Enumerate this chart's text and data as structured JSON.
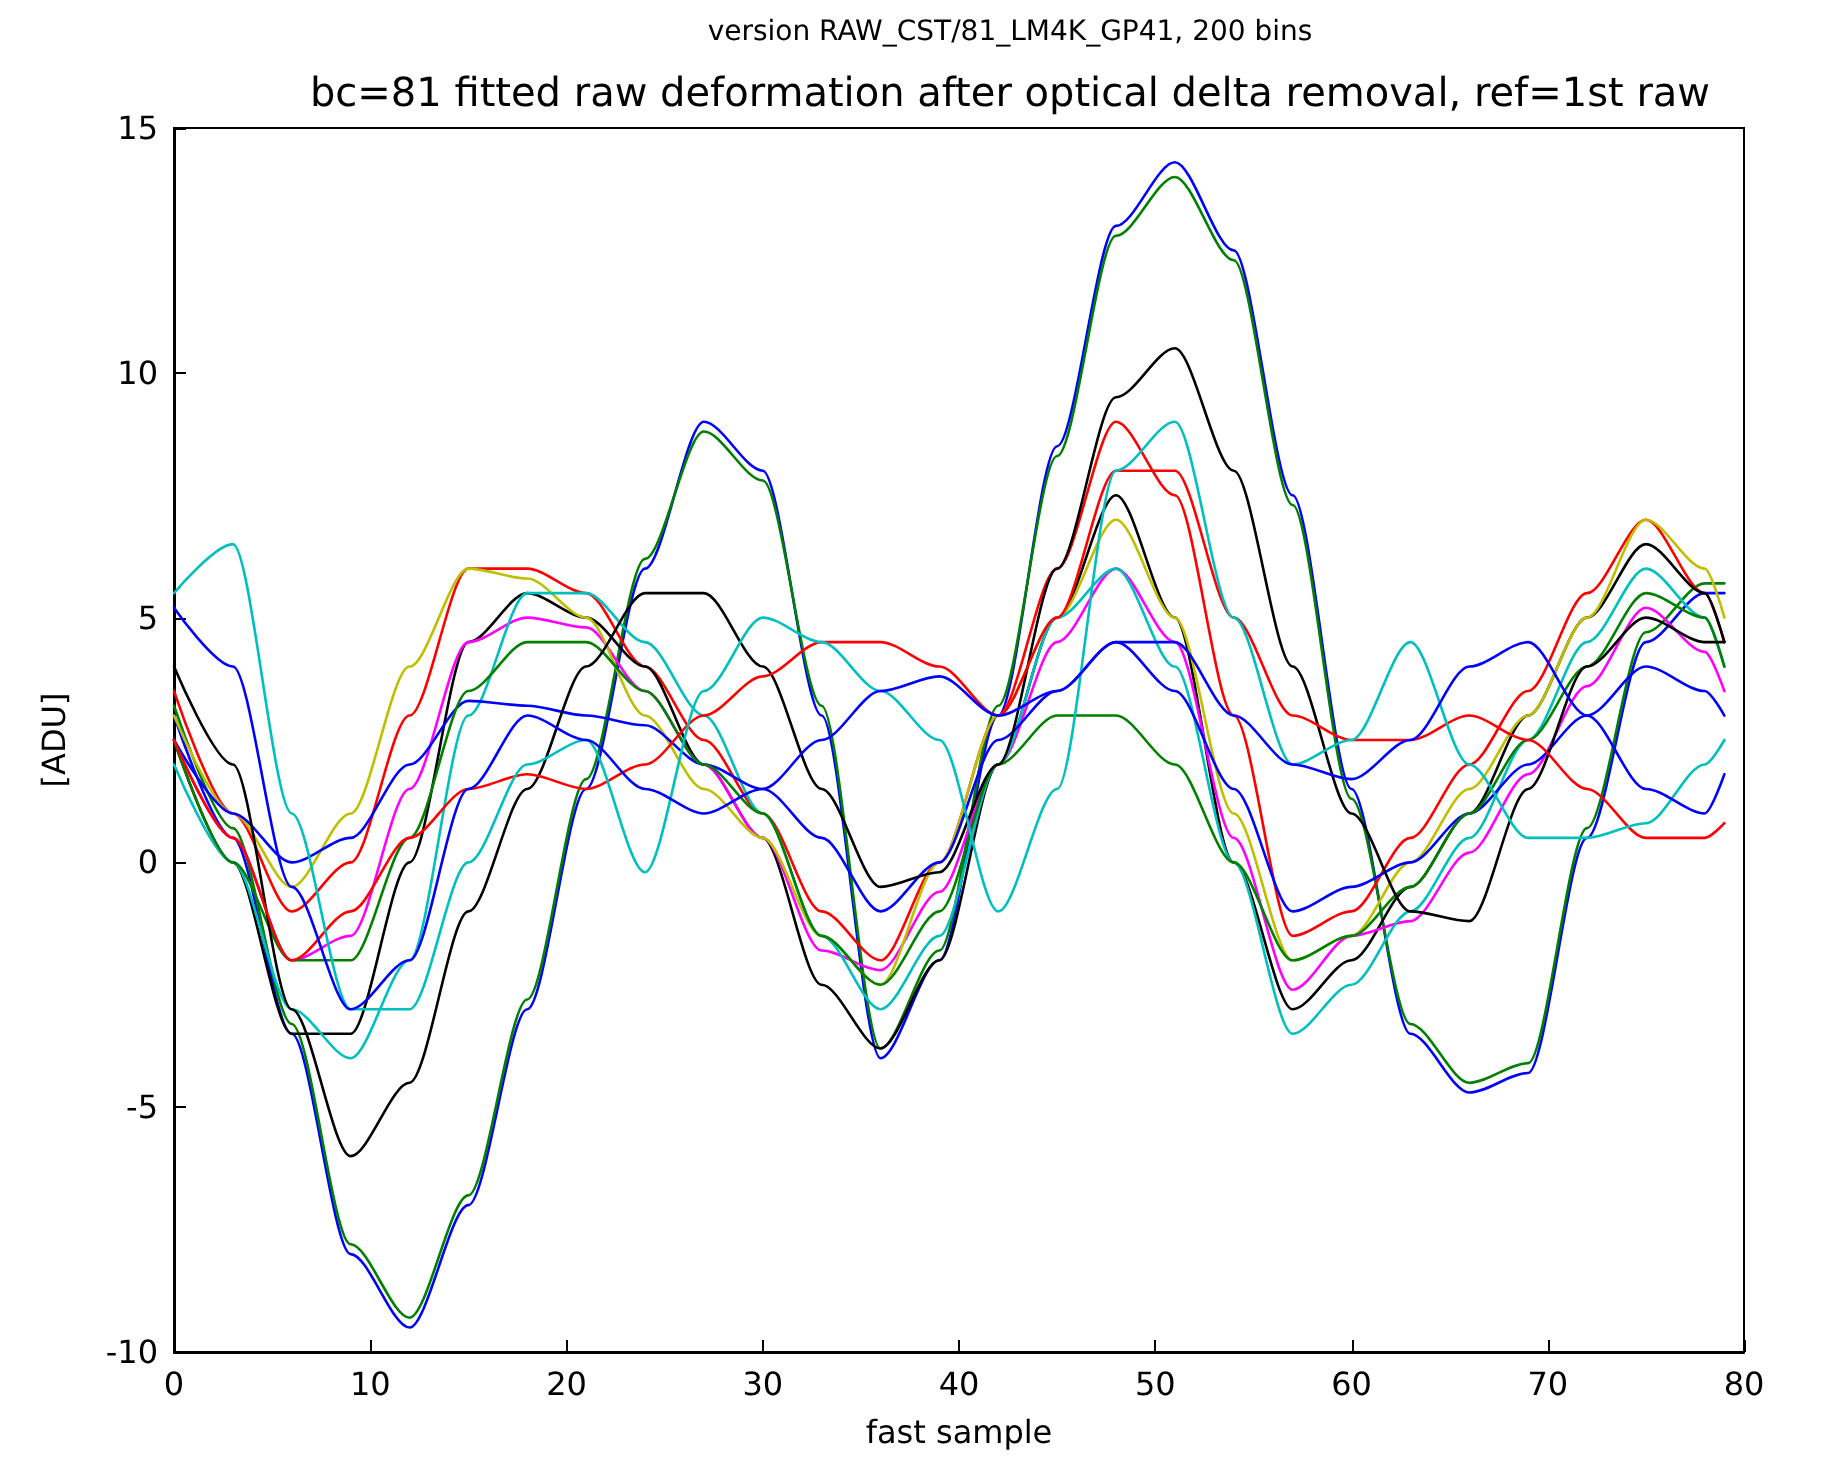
{
  "chart_data": {
    "type": "line",
    "subtitle": "version RAW_CST/81_LM4K_GP41, 200 bins",
    "title": "bc=81 fitted raw deformation after optical delta removal, ref=1st raw",
    "xlabel": "fast sample",
    "ylabel": "[ADU]",
    "x": [
      0,
      3,
      6,
      9,
      12,
      15,
      18,
      21,
      24,
      27,
      30,
      33,
      36,
      39,
      42,
      45,
      48,
      51,
      54,
      57,
      60,
      63,
      66,
      69,
      72,
      75,
      78,
      79
    ],
    "xlim": [
      0,
      80
    ],
    "xticks": [
      0,
      10,
      20,
      30,
      40,
      50,
      60,
      70,
      80
    ],
    "ylim": [
      -10,
      15
    ],
    "yticks": [
      -10,
      -5,
      0,
      5,
      10,
      15
    ],
    "grid": false,
    "marker": "none",
    "series": [
      {
        "color": "#0000ff",
        "values": [
          3,
          0.5,
          -3.5,
          -8,
          -9.5,
          -7,
          -3,
          1.5,
          6,
          9,
          8,
          3,
          -4,
          -2,
          3,
          8.5,
          13,
          14.3,
          12.5,
          7.5,
          1.5,
          -3.5,
          -4.7,
          -4.3,
          0.5,
          4.5,
          5.5,
          5.5
        ]
      },
      {
        "color": "#008000",
        "values": [
          3.2,
          0.7,
          -3.3,
          -7.8,
          -9.3,
          -6.8,
          -2.8,
          1.7,
          6.2,
          8.8,
          7.8,
          3.2,
          -3.8,
          -1.8,
          3.2,
          8.3,
          12.8,
          14,
          12.3,
          7.3,
          1.3,
          -3.3,
          -4.5,
          -4.1,
          0.7,
          4.7,
          5.7,
          5.7
        ]
      },
      {
        "color": "#ff0000",
        "values": [
          3.5,
          1,
          -1,
          0,
          3,
          6,
          6,
          5.5,
          4,
          2.5,
          1,
          -1,
          -2,
          0,
          3,
          6,
          9,
          7.5,
          3,
          -1.5,
          -1,
          0.5,
          2,
          3.5,
          5.5,
          7,
          5.5,
          4.5
        ]
      },
      {
        "color": "#000000",
        "values": [
          2.5,
          0,
          -3.5,
          -3.5,
          0,
          4.5,
          5.5,
          5,
          4,
          2,
          0.5,
          -2.5,
          -3.8,
          -2,
          2,
          5,
          7.5,
          5,
          0,
          -3,
          -2,
          -0.5,
          1,
          3,
          5,
          6.5,
          5.5,
          4.5
        ]
      },
      {
        "color": "#ff00ff",
        "values": [
          2.5,
          0.5,
          -2,
          -1.5,
          1.5,
          4.5,
          5,
          4.8,
          3.5,
          2,
          0.5,
          -1.8,
          -2.2,
          -0.6,
          2,
          4.5,
          6,
          4.5,
          0.5,
          -2.6,
          -1.5,
          -1.2,
          0.2,
          1.8,
          3.6,
          5.2,
          4.3,
          3.5
        ]
      },
      {
        "color": "#bfbf00",
        "values": [
          3,
          1,
          -0.5,
          1,
          4,
          6,
          5.8,
          5,
          3,
          1.5,
          0.5,
          -1.5,
          -2.5,
          0,
          3,
          5,
          7,
          5,
          1,
          -2,
          -1.5,
          0,
          1.5,
          3,
          5,
          7,
          6,
          5
        ]
      },
      {
        "color": "#00bfbf",
        "values": [
          2,
          0,
          -3,
          -4,
          -2,
          3,
          5.5,
          5.5,
          4.5,
          3,
          1,
          -1.5,
          -3,
          -1.5,
          2,
          5,
          6,
          4,
          0,
          -3.5,
          -2.5,
          -1,
          0.5,
          2.5,
          4.5,
          6,
          5,
          4
        ]
      },
      {
        "color": "#0000ff",
        "values": [
          2.5,
          1,
          0,
          0.5,
          2,
          3.3,
          3.2,
          3,
          2.8,
          2,
          1.5,
          0.5,
          -1,
          0,
          2.5,
          3.5,
          4.5,
          3.5,
          1.5,
          -1,
          -0.5,
          0,
          1,
          2,
          3,
          4,
          3.5,
          3
        ]
      },
      {
        "color": "#008000",
        "values": [
          2.5,
          0,
          -2,
          -2,
          0.5,
          3.5,
          4.5,
          4.5,
          3.5,
          2,
          1,
          -1.5,
          -2.5,
          -1,
          2,
          3,
          3,
          2,
          0,
          -2,
          -1.5,
          -0.5,
          1,
          2.5,
          4,
          5.5,
          5,
          4
        ]
      },
      {
        "color": "#000000",
        "values": [
          4,
          2,
          -3,
          -6,
          -4.5,
          -1,
          1.5,
          4,
          5.5,
          5.5,
          4,
          1.5,
          -0.5,
          -0.2,
          2,
          6,
          9.5,
          10.5,
          8,
          4,
          1,
          -1,
          -1.2,
          1.5,
          4,
          5,
          4.5,
          4.5
        ]
      },
      {
        "color": "#ff0000",
        "values": [
          2.5,
          0.5,
          -2,
          -1,
          0.5,
          1.5,
          1.8,
          1.5,
          2,
          3,
          3.8,
          4.5,
          4.5,
          4,
          3,
          5,
          8,
          8,
          5,
          3,
          2.5,
          2.5,
          3,
          2.5,
          1.5,
          0.5,
          0.5,
          0.8
        ]
      },
      {
        "color": "#00bfbf",
        "values": [
          5.5,
          6.5,
          1,
          -3,
          -3,
          0,
          2,
          2.5,
          -0.2,
          3.5,
          5,
          4.5,
          3.5,
          2.5,
          -1,
          1.5,
          8,
          9,
          5,
          2,
          2.5,
          4.5,
          2,
          0.5,
          0.5,
          0.8,
          2,
          2.5
        ]
      },
      {
        "color": "#0000ff",
        "values": [
          5.2,
          4,
          -0.5,
          -3,
          -2,
          1.5,
          3,
          2.5,
          1.5,
          1,
          1.5,
          2.5,
          3.5,
          3.8,
          3,
          3.5,
          4.5,
          4.5,
          3,
          2,
          1.7,
          2.5,
          4,
          4.5,
          3,
          1.5,
          1,
          1.8
        ]
      }
    ]
  }
}
